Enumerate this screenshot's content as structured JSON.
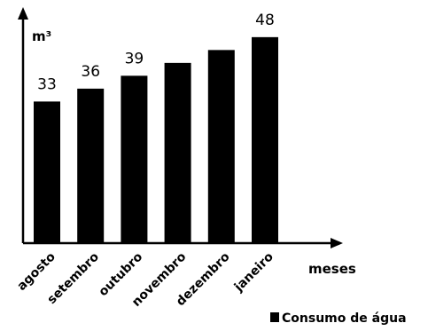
{
  "chart_data": {
    "type": "bar",
    "title": "",
    "xlabel": "meses",
    "ylabel": "m³",
    "categories": [
      "agosto",
      "setembro",
      "outubro",
      "novembro",
      "dezembro",
      "janeiro"
    ],
    "series": [
      {
        "name": "Consumo de água",
        "values": [
          33,
          36,
          39,
          42,
          45,
          48
        ],
        "data_labels": [
          "33",
          "36",
          "39",
          "",
          "",
          "48"
        ],
        "color": "#000000"
      }
    ],
    "ylim": [
      0,
      55
    ],
    "grid": false,
    "legend_position": "bottom-right"
  }
}
